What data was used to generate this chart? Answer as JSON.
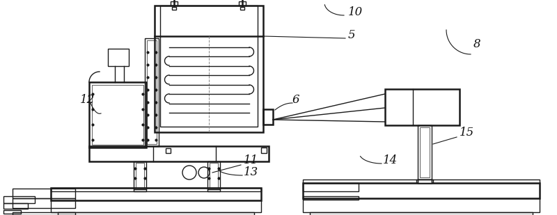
{
  "bg_color": "#ffffff",
  "line_color": "#1a1a1a",
  "lw": 1.0,
  "lw2": 1.8
}
